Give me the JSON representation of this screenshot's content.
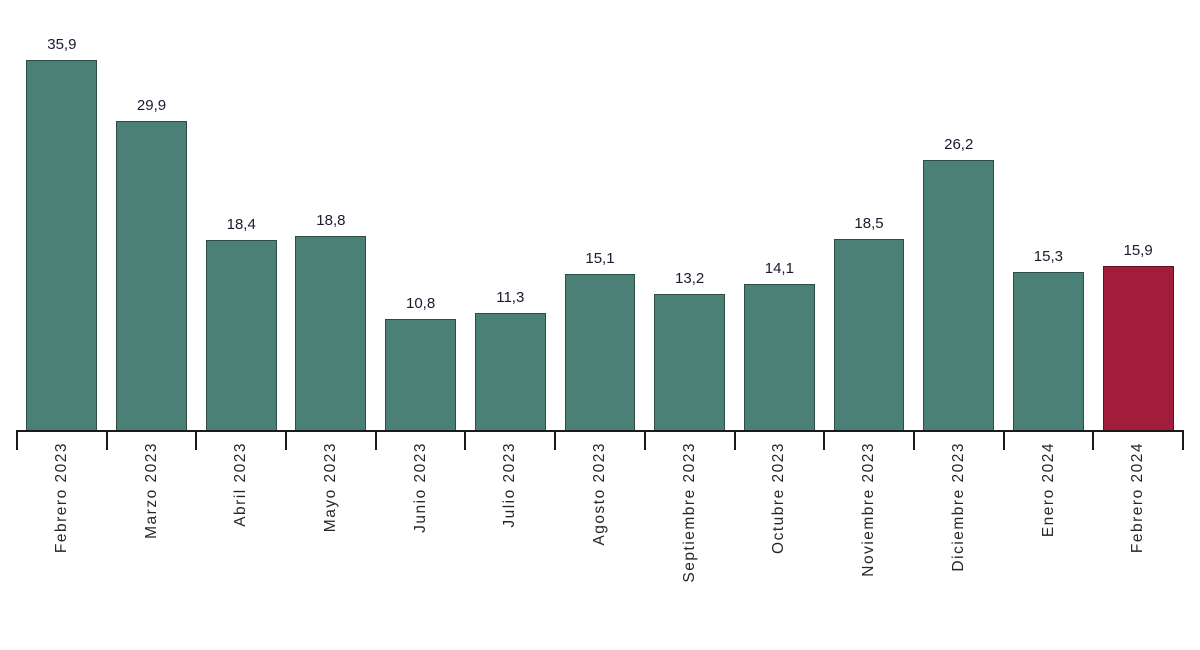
{
  "chart_data": {
    "type": "bar",
    "title": "",
    "xlabel": "",
    "ylabel": "",
    "categories": [
      "Febrero 2023",
      "Marzo 2023",
      "Abril 2023",
      "Mayo 2023",
      "Junio 2023",
      "Julio 2023",
      "Agosto 2023",
      "Septiembre 2023",
      "Octubre 2023",
      "Noviembre 2023",
      "Diciembre 2023",
      "Enero 2024",
      "Febrero 2024"
    ],
    "values": [
      35.9,
      29.9,
      18.4,
      18.8,
      10.8,
      11.3,
      15.1,
      13.2,
      14.1,
      18.5,
      26.2,
      15.3,
      15.9
    ],
    "value_labels": [
      "35,9",
      "29,9",
      "18,4",
      "18,8",
      "10,8",
      "11,3",
      "15,1",
      "13,2",
      "14,1",
      "18,5",
      "26,2",
      "15,3",
      "15,9"
    ],
    "ylim": [
      0,
      37.6
    ],
    "grid": false,
    "legend_position": "none",
    "bar_color": "#4A8076",
    "highlight_color": "#A21C3B",
    "highlight_index": 12,
    "bar_border_color": "rgba(0,0,0,0.4)",
    "axis_color": "#1a1a1a",
    "value_label_color": "#1a1a2e",
    "tick_label_color": "#262626"
  }
}
